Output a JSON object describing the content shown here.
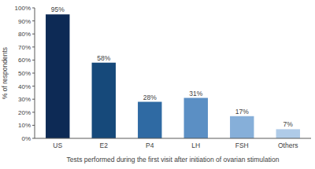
{
  "chart_data": {
    "type": "bar",
    "x_label": "Tests performed during the first visit after initiation of ovarian stimulation",
    "y_label": "% of respondents",
    "categories": [
      "US",
      "E2",
      "P4",
      "LH",
      "FSH",
      "Others"
    ],
    "values": [
      95,
      58,
      28,
      31,
      17,
      7
    ],
    "value_labels": [
      "95%",
      "58%",
      "28%",
      "31%",
      "17%",
      "7%"
    ],
    "colors": [
      "#0d2a55",
      "#16497a",
      "#2f6aa3",
      "#5b8fc4",
      "#86afd9",
      "#afcbe8"
    ],
    "ylim": [
      0,
      100
    ],
    "yticks": [
      {
        "value": 0,
        "label": "0%"
      },
      {
        "value": 10,
        "label": "10%"
      },
      {
        "value": 20,
        "label": "20%"
      },
      {
        "value": 30,
        "label": "30%"
      },
      {
        "value": 40,
        "label": "40%"
      },
      {
        "value": 50,
        "label": "50%"
      },
      {
        "value": 60,
        "label": "60%"
      },
      {
        "value": 70,
        "label": "70%"
      },
      {
        "value": 80,
        "label": "80%"
      },
      {
        "value": 90,
        "label": "90%"
      },
      {
        "value": 100,
        "label": "100%"
      }
    ],
    "data_labels": true,
    "grid": false
  }
}
